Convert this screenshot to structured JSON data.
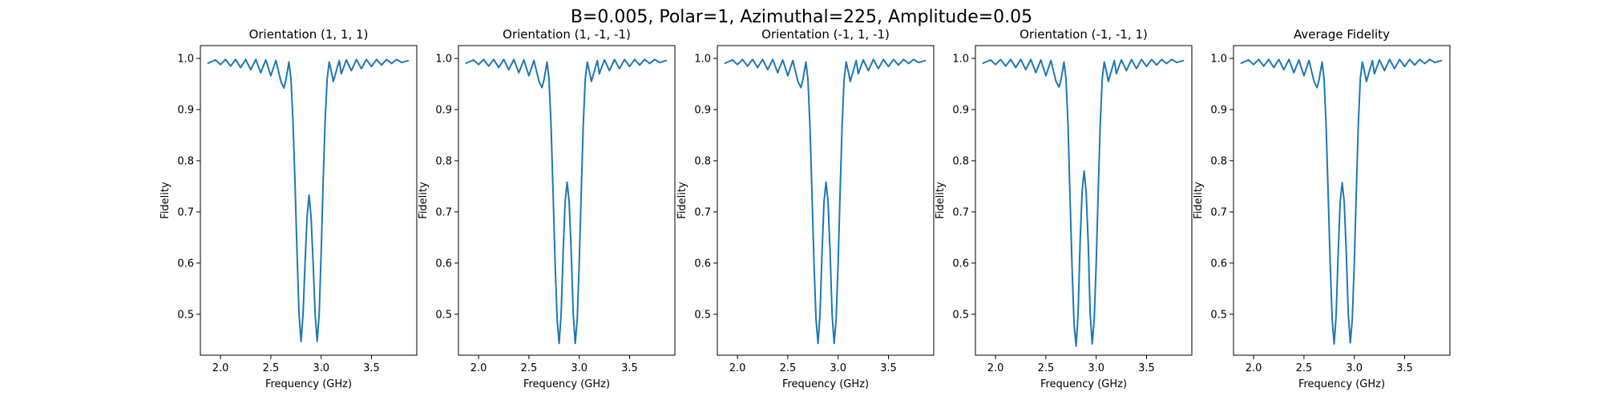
{
  "figure": {
    "suptitle": "B=0.005, Polar=1, Azimuthal=225, Amplitude=0.05",
    "line_color": "#1f77b4"
  },
  "chart_data": [
    {
      "type": "line",
      "title": "Orientation (1, 1, 1)",
      "xlabel": "Frequency (GHz)",
      "ylabel": "Fidelity",
      "xlim": [
        1.8,
        3.95
      ],
      "ylim": [
        0.42,
        1.025
      ],
      "xticks": [
        2.0,
        2.5,
        3.0,
        3.5
      ],
      "xtick_labels": [
        "2.0",
        "2.5",
        "3.0",
        "3.5"
      ],
      "yticks": [
        0.5,
        0.6,
        0.7,
        0.8,
        0.9,
        1.0
      ],
      "ytick_labels": [
        "0.5",
        "0.6",
        "0.7",
        "0.8",
        "0.9",
        "1.0"
      ],
      "series": [
        {
          "x": [
            1.87,
            1.95,
            2.0,
            2.05,
            2.1,
            2.15,
            2.2,
            2.25,
            2.3,
            2.35,
            2.4,
            2.45,
            2.5,
            2.55,
            2.6,
            2.63,
            2.65,
            2.68,
            2.7,
            2.72,
            2.74,
            2.76,
            2.78,
            2.8,
            2.82,
            2.84,
            2.86,
            2.88,
            2.9,
            2.92,
            2.94,
            2.96,
            2.98,
            3.0,
            3.02,
            3.04,
            3.06,
            3.08,
            3.1,
            3.12,
            3.15,
            3.18,
            3.2,
            3.25,
            3.3,
            3.35,
            3.4,
            3.45,
            3.5,
            3.55,
            3.6,
            3.65,
            3.7,
            3.75,
            3.8,
            3.87
          ],
          "y": [
            0.99,
            0.997,
            0.988,
            0.998,
            0.985,
            0.998,
            0.982,
            0.998,
            0.978,
            0.998,
            0.972,
            0.997,
            0.966,
            0.996,
            0.955,
            0.942,
            0.958,
            0.993,
            0.96,
            0.88,
            0.76,
            0.62,
            0.5,
            0.447,
            0.5,
            0.6,
            0.69,
            0.733,
            0.69,
            0.6,
            0.5,
            0.447,
            0.5,
            0.62,
            0.76,
            0.88,
            0.96,
            0.993,
            0.975,
            0.955,
            0.975,
            0.996,
            0.97,
            0.997,
            0.976,
            0.998,
            0.98,
            0.998,
            0.984,
            0.998,
            0.987,
            0.998,
            0.99,
            0.998,
            0.992,
            0.996
          ]
        }
      ]
    },
    {
      "type": "line",
      "title": "Orientation (1, -1, -1)",
      "xlabel": "Frequency (GHz)",
      "ylabel": "Fidelity",
      "xlim": [
        1.8,
        3.95
      ],
      "ylim": [
        0.42,
        1.025
      ],
      "xticks": [
        2.0,
        2.5,
        3.0,
        3.5
      ],
      "xtick_labels": [
        "2.0",
        "2.5",
        "3.0",
        "3.5"
      ],
      "yticks": [
        0.5,
        0.6,
        0.7,
        0.8,
        0.9,
        1.0
      ],
      "ytick_labels": [
        "0.5",
        "0.6",
        "0.7",
        "0.8",
        "0.9",
        "1.0"
      ],
      "series": [
        {
          "x": [
            1.87,
            1.95,
            2.0,
            2.05,
            2.1,
            2.15,
            2.2,
            2.25,
            2.3,
            2.35,
            2.4,
            2.45,
            2.5,
            2.55,
            2.6,
            2.63,
            2.65,
            2.68,
            2.7,
            2.72,
            2.74,
            2.76,
            2.78,
            2.8,
            2.82,
            2.84,
            2.86,
            2.88,
            2.9,
            2.92,
            2.94,
            2.96,
            2.98,
            3.0,
            3.02,
            3.04,
            3.06,
            3.08,
            3.1,
            3.12,
            3.15,
            3.18,
            3.2,
            3.25,
            3.3,
            3.35,
            3.4,
            3.45,
            3.5,
            3.55,
            3.6,
            3.65,
            3.7,
            3.75,
            3.8,
            3.87
          ],
          "y": [
            0.99,
            0.997,
            0.988,
            0.998,
            0.985,
            0.998,
            0.982,
            0.998,
            0.978,
            0.998,
            0.972,
            0.997,
            0.966,
            0.996,
            0.955,
            0.943,
            0.958,
            0.993,
            0.96,
            0.87,
            0.74,
            0.6,
            0.49,
            0.443,
            0.5,
            0.62,
            0.72,
            0.758,
            0.72,
            0.62,
            0.5,
            0.443,
            0.49,
            0.6,
            0.74,
            0.87,
            0.96,
            0.993,
            0.975,
            0.955,
            0.975,
            0.996,
            0.97,
            0.997,
            0.976,
            0.998,
            0.98,
            0.998,
            0.984,
            0.998,
            0.987,
            0.998,
            0.99,
            0.998,
            0.992,
            0.996
          ]
        }
      ]
    },
    {
      "type": "line",
      "title": "Orientation (-1, 1, -1)",
      "xlabel": "Frequency (GHz)",
      "ylabel": "Fidelity",
      "xlim": [
        1.8,
        3.95
      ],
      "ylim": [
        0.42,
        1.025
      ],
      "xticks": [
        2.0,
        2.5,
        3.0,
        3.5
      ],
      "xtick_labels": [
        "2.0",
        "2.5",
        "3.0",
        "3.5"
      ],
      "yticks": [
        0.5,
        0.6,
        0.7,
        0.8,
        0.9,
        1.0
      ],
      "ytick_labels": [
        "0.5",
        "0.6",
        "0.7",
        "0.8",
        "0.9",
        "1.0"
      ],
      "series": [
        {
          "x": [
            1.87,
            1.95,
            2.0,
            2.05,
            2.1,
            2.15,
            2.2,
            2.25,
            2.3,
            2.35,
            2.4,
            2.45,
            2.5,
            2.55,
            2.6,
            2.63,
            2.65,
            2.68,
            2.7,
            2.72,
            2.74,
            2.76,
            2.78,
            2.8,
            2.82,
            2.84,
            2.86,
            2.88,
            2.9,
            2.92,
            2.94,
            2.96,
            2.98,
            3.0,
            3.02,
            3.04,
            3.06,
            3.08,
            3.1,
            3.12,
            3.15,
            3.18,
            3.2,
            3.25,
            3.3,
            3.35,
            3.4,
            3.45,
            3.5,
            3.55,
            3.6,
            3.65,
            3.7,
            3.75,
            3.8,
            3.87
          ],
          "y": [
            0.99,
            0.997,
            0.988,
            0.998,
            0.985,
            0.998,
            0.982,
            0.998,
            0.978,
            0.998,
            0.972,
            0.997,
            0.966,
            0.996,
            0.955,
            0.943,
            0.958,
            0.993,
            0.96,
            0.87,
            0.74,
            0.6,
            0.49,
            0.443,
            0.5,
            0.62,
            0.72,
            0.758,
            0.72,
            0.62,
            0.5,
            0.443,
            0.49,
            0.6,
            0.74,
            0.87,
            0.96,
            0.993,
            0.975,
            0.955,
            0.975,
            0.996,
            0.97,
            0.997,
            0.976,
            0.998,
            0.98,
            0.998,
            0.984,
            0.998,
            0.987,
            0.998,
            0.99,
            0.998,
            0.992,
            0.996
          ]
        }
      ]
    },
    {
      "type": "line",
      "title": "Orientation (-1, -1, 1)",
      "xlabel": "Frequency (GHz)",
      "ylabel": "Fidelity",
      "xlim": [
        1.8,
        3.95
      ],
      "ylim": [
        0.42,
        1.025
      ],
      "xticks": [
        2.0,
        2.5,
        3.0,
        3.5
      ],
      "xtick_labels": [
        "2.0",
        "2.5",
        "3.0",
        "3.5"
      ],
      "yticks": [
        0.5,
        0.6,
        0.7,
        0.8,
        0.9,
        1.0
      ],
      "ytick_labels": [
        "0.5",
        "0.6",
        "0.7",
        "0.8",
        "0.9",
        "1.0"
      ],
      "series": [
        {
          "x": [
            1.87,
            1.95,
            2.0,
            2.05,
            2.1,
            2.15,
            2.2,
            2.25,
            2.3,
            2.35,
            2.4,
            2.45,
            2.5,
            2.55,
            2.6,
            2.63,
            2.65,
            2.68,
            2.7,
            2.72,
            2.74,
            2.76,
            2.78,
            2.8,
            2.82,
            2.84,
            2.86,
            2.88,
            2.9,
            2.92,
            2.94,
            2.96,
            2.98,
            3.0,
            3.02,
            3.04,
            3.06,
            3.08,
            3.1,
            3.12,
            3.15,
            3.18,
            3.2,
            3.25,
            3.3,
            3.35,
            3.4,
            3.45,
            3.5,
            3.55,
            3.6,
            3.65,
            3.7,
            3.75,
            3.8,
            3.87
          ],
          "y": [
            0.99,
            0.997,
            0.988,
            0.998,
            0.985,
            0.998,
            0.982,
            0.998,
            0.978,
            0.998,
            0.972,
            0.997,
            0.966,
            0.996,
            0.955,
            0.944,
            0.958,
            0.993,
            0.96,
            0.87,
            0.73,
            0.59,
            0.48,
            0.438,
            0.5,
            0.64,
            0.74,
            0.78,
            0.74,
            0.64,
            0.5,
            0.442,
            0.49,
            0.6,
            0.74,
            0.87,
            0.96,
            0.993,
            0.975,
            0.955,
            0.975,
            0.996,
            0.97,
            0.997,
            0.976,
            0.998,
            0.98,
            0.998,
            0.984,
            0.998,
            0.987,
            0.998,
            0.99,
            0.998,
            0.992,
            0.996
          ]
        }
      ]
    },
    {
      "type": "line",
      "title": "Average Fidelity",
      "xlabel": "Frequency (GHz)",
      "ylabel": "Fidelity",
      "xlim": [
        1.8,
        3.95
      ],
      "ylim": [
        0.42,
        1.025
      ],
      "xticks": [
        2.0,
        2.5,
        3.0,
        3.5
      ],
      "xtick_labels": [
        "2.0",
        "2.5",
        "3.0",
        "3.5"
      ],
      "yticks": [
        0.5,
        0.6,
        0.7,
        0.8,
        0.9,
        1.0
      ],
      "ytick_labels": [
        "0.5",
        "0.6",
        "0.7",
        "0.8",
        "0.9",
        "1.0"
      ],
      "series": [
        {
          "x": [
            1.87,
            1.95,
            2.0,
            2.05,
            2.1,
            2.15,
            2.2,
            2.25,
            2.3,
            2.35,
            2.4,
            2.45,
            2.5,
            2.55,
            2.6,
            2.63,
            2.65,
            2.68,
            2.7,
            2.72,
            2.74,
            2.76,
            2.78,
            2.8,
            2.82,
            2.84,
            2.86,
            2.88,
            2.9,
            2.92,
            2.94,
            2.96,
            2.98,
            3.0,
            3.02,
            3.04,
            3.06,
            3.08,
            3.1,
            3.12,
            3.15,
            3.18,
            3.2,
            3.25,
            3.3,
            3.35,
            3.4,
            3.45,
            3.5,
            3.55,
            3.6,
            3.65,
            3.7,
            3.75,
            3.8,
            3.87
          ],
          "y": [
            0.99,
            0.997,
            0.988,
            0.998,
            0.985,
            0.998,
            0.982,
            0.998,
            0.978,
            0.998,
            0.972,
            0.997,
            0.966,
            0.996,
            0.955,
            0.943,
            0.958,
            0.993,
            0.96,
            0.87,
            0.74,
            0.6,
            0.49,
            0.442,
            0.5,
            0.62,
            0.72,
            0.757,
            0.72,
            0.62,
            0.5,
            0.444,
            0.49,
            0.6,
            0.74,
            0.87,
            0.96,
            0.993,
            0.975,
            0.955,
            0.975,
            0.996,
            0.97,
            0.997,
            0.976,
            0.998,
            0.98,
            0.998,
            0.984,
            0.998,
            0.987,
            0.998,
            0.99,
            0.998,
            0.992,
            0.996
          ]
        }
      ]
    }
  ]
}
